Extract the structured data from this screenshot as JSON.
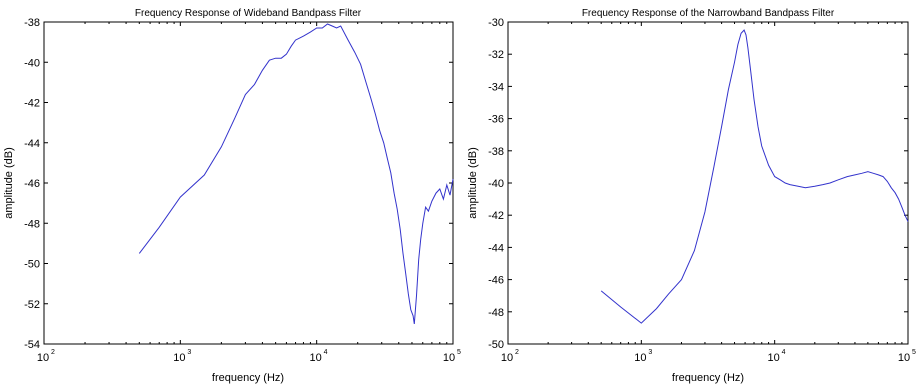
{
  "chart_data": [
    {
      "type": "line",
      "title": "Frequency Response of Wideband Bandpass Filter",
      "xlabel": "frequency (Hz)",
      "ylabel": "amplitude (dB)",
      "xscale": "log",
      "xlim": [
        100,
        100000
      ],
      "ylim": [
        -54,
        -38
      ],
      "xticks": [
        100,
        1000,
        10000,
        100000
      ],
      "xtick_labels": [
        {
          "base": "10",
          "exp": "2"
        },
        {
          "base": "10",
          "exp": "3"
        },
        {
          "base": "10",
          "exp": "4"
        },
        {
          "base": "10",
          "exp": "5"
        }
      ],
      "yticks": [
        -54,
        -52,
        -50,
        -48,
        -46,
        -44,
        -42,
        -40,
        -38
      ],
      "ytick_labels": [
        "-54",
        "-52",
        "-50",
        "-48",
        "-46",
        "-44",
        "-42",
        "-40",
        "-38"
      ],
      "grid": false,
      "line_color": "#3333cc",
      "series": [
        {
          "x": [
            500,
            700,
            1000,
            1500,
            2000,
            2500,
            3000,
            3500,
            4000,
            4500,
            5000,
            5500,
            6000,
            6500,
            7000,
            7500,
            8000,
            9000,
            10000,
            11000,
            12000,
            13000,
            14000,
            15000,
            17000,
            19000,
            21000,
            23000,
            25000,
            27000,
            29000,
            31000,
            33000,
            35000,
            37000,
            39000,
            41000,
            43000,
            45000,
            47000,
            49000,
            51000,
            52000,
            53000,
            54000,
            55000,
            56000,
            58000,
            60000,
            63000,
            66000,
            70000,
            75000,
            80000,
            85000,
            90000,
            95000,
            100000
          ],
          "y": [
            -49.5,
            -48.2,
            -46.7,
            -45.6,
            -44.2,
            -42.8,
            -41.6,
            -41.1,
            -40.4,
            -39.9,
            -39.8,
            -39.8,
            -39.6,
            -39.2,
            -38.9,
            -38.8,
            -38.7,
            -38.5,
            -38.3,
            -38.3,
            -38.1,
            -38.2,
            -38.3,
            -38.2,
            -38.9,
            -39.5,
            -40.1,
            -41.0,
            -41.8,
            -42.6,
            -43.4,
            -44.0,
            -44.8,
            -45.5,
            -46.5,
            -47.3,
            -48.3,
            -49.5,
            -50.5,
            -51.5,
            -52.3,
            -52.6,
            -53.0,
            -52.3,
            -51.6,
            -50.7,
            -49.8,
            -48.8,
            -48.0,
            -47.2,
            -47.4,
            -46.9,
            -46.5,
            -46.3,
            -46.8,
            -46.1,
            -46.6,
            -45.8
          ]
        }
      ]
    },
    {
      "type": "line",
      "title": "Frequency Response of the Narrowband Bandpass Filter",
      "xlabel": "frequency (Hz)",
      "ylabel": "amplitude (dB)",
      "xscale": "log",
      "xlim": [
        100,
        100000
      ],
      "ylim": [
        -50,
        -30
      ],
      "xticks": [
        100,
        1000,
        10000,
        100000
      ],
      "xtick_labels": [
        {
          "base": "10",
          "exp": "2"
        },
        {
          "base": "10",
          "exp": "3"
        },
        {
          "base": "10",
          "exp": "4"
        },
        {
          "base": "10",
          "exp": "5"
        }
      ],
      "yticks": [
        -50,
        -48,
        -46,
        -44,
        -42,
        -40,
        -38,
        -36,
        -34,
        -32,
        -30
      ],
      "ytick_labels": [
        "-50",
        "-48",
        "-46",
        "-44",
        "-42",
        "-40",
        "-38",
        "-36",
        "-34",
        "-32",
        "-30"
      ],
      "grid": false,
      "line_color": "#3333cc",
      "series": [
        {
          "x": [
            500,
            700,
            1000,
            1300,
            1600,
            2000,
            2500,
            3000,
            3500,
            4000,
            4500,
            5000,
            5300,
            5600,
            5900,
            6100,
            6300,
            6600,
            7000,
            7500,
            8000,
            9000,
            10000,
            11000,
            12000,
            13000,
            15000,
            17000,
            20000,
            23000,
            26000,
            30000,
            35000,
            40000,
            45000,
            50000,
            55000,
            60000,
            65000,
            70000,
            75000,
            80000,
            85000,
            90000,
            95000,
            100000
          ],
          "y": [
            -46.7,
            -47.7,
            -48.7,
            -47.8,
            -46.9,
            -46.0,
            -44.2,
            -41.8,
            -39.0,
            -36.5,
            -34.2,
            -32.5,
            -31.4,
            -30.7,
            -30.5,
            -30.8,
            -31.6,
            -33.0,
            -34.8,
            -36.5,
            -37.7,
            -38.9,
            -39.6,
            -39.8,
            -40.0,
            -40.1,
            -40.2,
            -40.3,
            -40.2,
            -40.1,
            -40.0,
            -39.8,
            -39.6,
            -39.5,
            -39.4,
            -39.3,
            -39.4,
            -39.5,
            -39.6,
            -39.9,
            -40.3,
            -40.6,
            -41.0,
            -41.5,
            -42.0,
            -42.4
          ]
        }
      ]
    }
  ]
}
